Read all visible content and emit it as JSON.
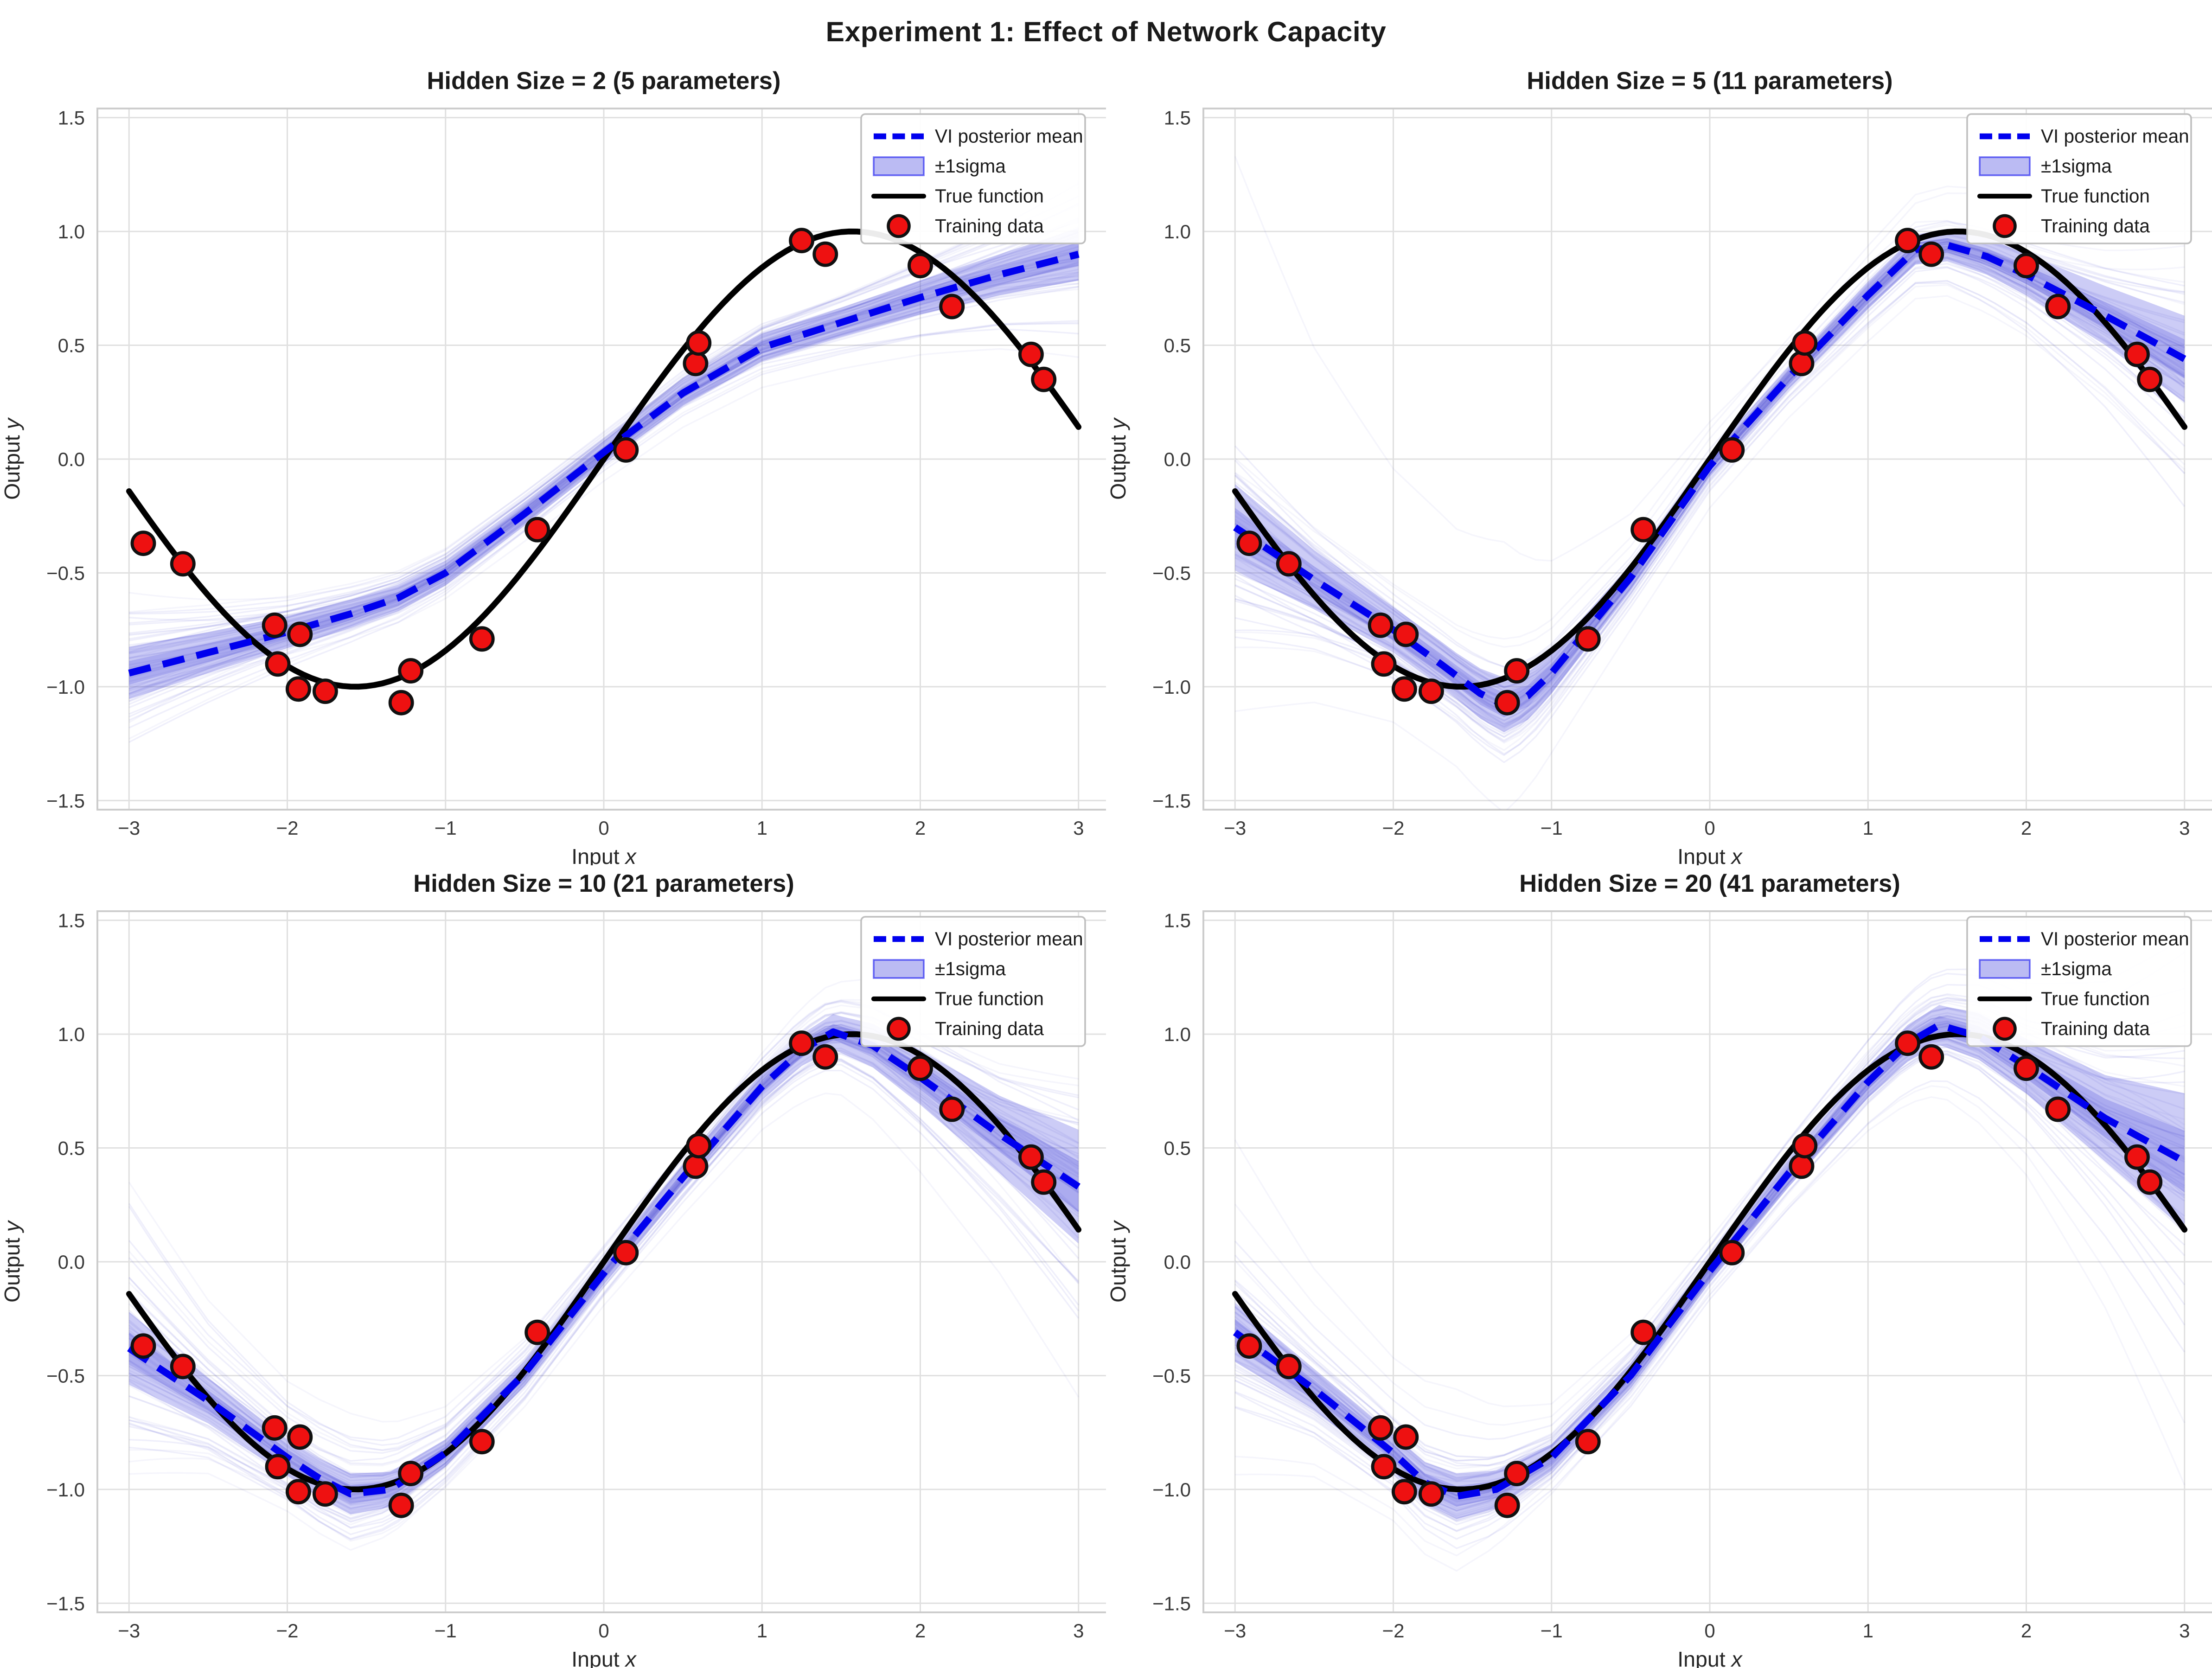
{
  "figure_title": "Experiment 1: Effect of Network Capacity",
  "colors": {
    "background": "#ffffff",
    "grid": "#e0e0e0",
    "spine": "#cccccc",
    "text": "#262626",
    "vi_mean": "#0000ee",
    "sigma_fill": "#5555e0",
    "sample_line": "#4444cc",
    "true_function": "#000000",
    "training_point_fill": "#ee1111",
    "training_point_edge": "#111111"
  },
  "chart_data": {
    "type": "line",
    "title": "Experiment 1: Effect of Network Capacity",
    "xlabel": "Input x",
    "ylabel": "Output y",
    "xlim": [
      -3.2,
      3.2
    ],
    "ylim": [
      -1.54,
      1.54
    ],
    "grid": true,
    "legend_position": "upper right",
    "legend": [
      {
        "label": "VI posterior mean",
        "swatch": "dashed-line"
      },
      {
        "label": "±1sigma",
        "swatch": "patch"
      },
      {
        "label": "True function",
        "swatch": "solid-line"
      },
      {
        "label": "Training data",
        "swatch": "marker"
      }
    ],
    "xticks": [
      {
        "v": -3,
        "label": "−3"
      },
      {
        "v": -2,
        "label": "−2"
      },
      {
        "v": -1,
        "label": "−1"
      },
      {
        "v": 0,
        "label": "0"
      },
      {
        "v": 1,
        "label": "1"
      },
      {
        "v": 2,
        "label": "2"
      },
      {
        "v": 3,
        "label": "3"
      }
    ],
    "yticks": [
      {
        "v": -1.5,
        "label": "−1.5"
      },
      {
        "v": -1.0,
        "label": "−1.0"
      },
      {
        "v": -0.5,
        "label": "−0.5"
      },
      {
        "v": 0.0,
        "label": "0.0"
      },
      {
        "v": 0.5,
        "label": "0.5"
      },
      {
        "v": 1.0,
        "label": "1.0"
      },
      {
        "v": 1.5,
        "label": "1.5"
      }
    ],
    "true_function": {
      "label": "True function",
      "formula": "sin(x)",
      "domain": [
        -3,
        3
      ]
    },
    "training_data": [
      [
        -2.91,
        -0.37
      ],
      [
        -2.66,
        -0.46
      ],
      [
        -2.08,
        -0.73
      ],
      [
        -2.06,
        -0.9
      ],
      [
        -1.93,
        -1.01
      ],
      [
        -1.92,
        -0.77
      ],
      [
        -1.76,
        -1.02
      ],
      [
        -1.28,
        -1.07
      ],
      [
        -1.22,
        -0.93
      ],
      [
        -0.77,
        -0.79
      ],
      [
        -0.42,
        -0.31
      ],
      [
        0.14,
        0.04
      ],
      [
        0.58,
        0.42
      ],
      [
        0.6,
        0.51
      ],
      [
        1.25,
        0.96
      ],
      [
        1.4,
        0.9
      ],
      [
        2.0,
        0.85
      ],
      [
        2.2,
        0.67
      ],
      [
        2.7,
        0.46
      ],
      [
        2.78,
        0.35
      ]
    ],
    "panels": [
      {
        "title": "Hidden Size = 2 (5 parameters)",
        "hidden_size": 2,
        "n_parameters": 5,
        "vi_mean": [
          [
            -3,
            -0.94
          ],
          [
            -2.5,
            -0.85
          ],
          [
            -2,
            -0.76
          ],
          [
            -1.6,
            -0.68
          ],
          [
            -1.3,
            -0.61
          ],
          [
            -1,
            -0.5
          ],
          [
            -0.5,
            -0.24
          ],
          [
            0,
            0.03
          ],
          [
            0.5,
            0.29
          ],
          [
            1,
            0.49
          ],
          [
            1.5,
            0.6
          ],
          [
            2,
            0.71
          ],
          [
            2.5,
            0.81
          ],
          [
            3,
            0.9
          ]
        ],
        "sigma_halfwidth": [
          [
            -3,
            0.115
          ],
          [
            -2.5,
            0.09
          ],
          [
            -2,
            0.07
          ],
          [
            -1.5,
            0.06
          ],
          [
            -1,
            0.055
          ],
          [
            0,
            0.05
          ],
          [
            1,
            0.06
          ],
          [
            1.5,
            0.065
          ],
          [
            2,
            0.075
          ],
          [
            2.5,
            0.09
          ],
          [
            3,
            0.115
          ]
        ]
      },
      {
        "title": "Hidden Size = 5 (11 parameters)",
        "hidden_size": 5,
        "n_parameters": 11,
        "vi_mean": [
          [
            -3,
            -0.3
          ],
          [
            -2.5,
            -0.53
          ],
          [
            -2,
            -0.75
          ],
          [
            -1.7,
            -0.9
          ],
          [
            -1.45,
            -1.03
          ],
          [
            -1.3,
            -1.08
          ],
          [
            -1.15,
            -1.04
          ],
          [
            -1,
            -0.94
          ],
          [
            -0.5,
            -0.52
          ],
          [
            0,
            -0.03
          ],
          [
            0.5,
            0.36
          ],
          [
            1,
            0.72
          ],
          [
            1.3,
            0.92
          ],
          [
            1.5,
            0.94
          ],
          [
            1.75,
            0.89
          ],
          [
            2,
            0.81
          ],
          [
            2.5,
            0.63
          ],
          [
            3,
            0.44
          ]
        ],
        "sigma_halfwidth": [
          [
            -3,
            0.19
          ],
          [
            -2.5,
            0.13
          ],
          [
            -2,
            0.1
          ],
          [
            -1.6,
            0.1
          ],
          [
            -1.3,
            0.12
          ],
          [
            -1,
            0.09
          ],
          [
            -0.5,
            0.06
          ],
          [
            0,
            0.05
          ],
          [
            0.5,
            0.05
          ],
          [
            1,
            0.06
          ],
          [
            1.5,
            0.07
          ],
          [
            2,
            0.09
          ],
          [
            2.5,
            0.13
          ],
          [
            3,
            0.19
          ]
        ]
      },
      {
        "title": "Hidden Size = 10 (21 parameters)",
        "hidden_size": 10,
        "n_parameters": 21,
        "vi_mean": [
          [
            -3,
            -0.38
          ],
          [
            -2.5,
            -0.61
          ],
          [
            -2,
            -0.86
          ],
          [
            -1.8,
            -0.95
          ],
          [
            -1.6,
            -1.02
          ],
          [
            -1.35,
            -1.0
          ],
          [
            -1,
            -0.84
          ],
          [
            -0.5,
            -0.49
          ],
          [
            0,
            -0.05
          ],
          [
            0.5,
            0.37
          ],
          [
            1,
            0.77
          ],
          [
            1.25,
            0.93
          ],
          [
            1.45,
            1.01
          ],
          [
            1.7,
            0.95
          ],
          [
            2,
            0.81
          ],
          [
            2.5,
            0.56
          ],
          [
            3,
            0.33
          ]
        ],
        "sigma_halfwidth": [
          [
            -3,
            0.16
          ],
          [
            -2.5,
            0.1
          ],
          [
            -2,
            0.08
          ],
          [
            -1.6,
            0.09
          ],
          [
            -1,
            0.06
          ],
          [
            0,
            0.05
          ],
          [
            1,
            0.06
          ],
          [
            1.5,
            0.08
          ],
          [
            2,
            0.12
          ],
          [
            2.5,
            0.17
          ],
          [
            3,
            0.25
          ]
        ]
      },
      {
        "title": "Hidden Size = 20 (41 parameters)",
        "hidden_size": 20,
        "n_parameters": 41,
        "vi_mean": [
          [
            -3,
            -0.31
          ],
          [
            -2.5,
            -0.56
          ],
          [
            -2,
            -0.84
          ],
          [
            -1.8,
            -0.97
          ],
          [
            -1.6,
            -1.03
          ],
          [
            -1.35,
            -1.0
          ],
          [
            -1,
            -0.86
          ],
          [
            -0.5,
            -0.5
          ],
          [
            0,
            -0.04
          ],
          [
            0.5,
            0.39
          ],
          [
            1,
            0.79
          ],
          [
            1.25,
            0.96
          ],
          [
            1.45,
            1.04
          ],
          [
            1.7,
            0.99
          ],
          [
            2,
            0.86
          ],
          [
            2.5,
            0.63
          ],
          [
            3,
            0.44
          ]
        ],
        "sigma_halfwidth": [
          [
            -3,
            0.13
          ],
          [
            -2.5,
            0.09
          ],
          [
            -2,
            0.08
          ],
          [
            -1.6,
            0.1
          ],
          [
            -1,
            0.06
          ],
          [
            0,
            0.05
          ],
          [
            1,
            0.07
          ],
          [
            1.5,
            0.09
          ],
          [
            2,
            0.12
          ],
          [
            2.5,
            0.19
          ],
          [
            3,
            0.3
          ]
        ]
      }
    ]
  }
}
